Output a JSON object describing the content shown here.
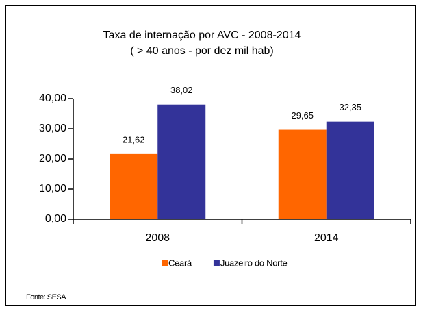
{
  "chart_data": {
    "type": "bar",
    "title": "Taxa de internação por AVC - 2008-2014",
    "subtitle": "( > 40 anos - por dez mil hab)",
    "categories": [
      "2008",
      "2014"
    ],
    "series": [
      {
        "name": "Ceará",
        "color": "#ff6600",
        "values": [
          21.62,
          29.65
        ],
        "value_labels": [
          "21,62",
          "29,65"
        ]
      },
      {
        "name": "Juazeiro do Norte",
        "color": "#333399",
        "values": [
          38.02,
          32.35
        ],
        "value_labels": [
          "38,02",
          "32,35"
        ]
      }
    ],
    "ylim": [
      0,
      40
    ],
    "yticks": [
      {
        "value": 0,
        "label": "0,00"
      },
      {
        "value": 10,
        "label": "10,00"
      },
      {
        "value": 20,
        "label": "20,00"
      },
      {
        "value": 30,
        "label": "30,00"
      },
      {
        "value": 40,
        "label": "40,00"
      }
    ],
    "legend": "bottom",
    "source": "Fonte: SESA"
  }
}
